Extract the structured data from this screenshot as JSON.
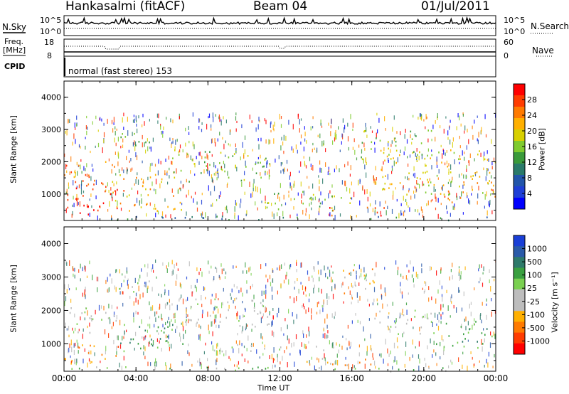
{
  "header": {
    "station": "Hankasalmi (fitACF)",
    "beam": "Beam 04",
    "date": "01/Jul/2011"
  },
  "strip_panels": {
    "nsky": {
      "left_label": "N.Sky",
      "left_ticks": [
        "10^5",
        "10^0"
      ],
      "right_ticks": [
        "10^5",
        "10^0"
      ],
      "right_label": "N.Search",
      "right_line_style": "dotted"
    },
    "freq": {
      "left_label_1": "Freq.",
      "left_label_2": "[MHz]",
      "left_ticks": [
        "18",
        "8"
      ],
      "right_ticks": [
        "60",
        "0"
      ],
      "right_label": "Nave",
      "right_line_style": "dotted"
    },
    "cpid": {
      "label": "CPID",
      "value": "normal (fast stereo) 153"
    }
  },
  "chart_data": [
    {
      "type": "heatmap",
      "title": "",
      "quantity": "Power",
      "xlabel": "",
      "ylabel": "Slant Range [km]",
      "x_range": [
        "00:00",
        "24:00"
      ],
      "y_range_km": [
        180,
        4500
      ],
      "y_ticks": [
        "1000",
        "2000",
        "3000",
        "4000"
      ],
      "x_ticks": [
        "00:00",
        "04:00",
        "08:00",
        "12:00",
        "16:00",
        "20:00",
        "00:00"
      ],
      "colorbar": {
        "label": "Power [dB]",
        "ticks": [
          "28",
          "24",
          "20",
          "16",
          "12",
          "8",
          "4"
        ],
        "colors": [
          "#ff0000",
          "#ff3c00",
          "#ff7a00",
          "#ffb000",
          "#d8d000",
          "#7fcb2e",
          "#3a9a3a",
          "#2a7a6a",
          "#2255aa",
          "#1f3fd6",
          "#0000ff"
        ]
      },
      "regions": [
        {
          "t0": 0.0,
          "t1": 3.3,
          "r0": 350,
          "r1": 1300,
          "band": 0
        },
        {
          "t0": 0.0,
          "t1": 2.8,
          "r0": 1300,
          "r1": 2100,
          "band": 2
        },
        {
          "t0": 2.5,
          "t1": 6.5,
          "r0": 500,
          "r1": 1700,
          "band": 3
        },
        {
          "t0": 6.0,
          "t1": 11.5,
          "r0": 1400,
          "r1": 2400,
          "band": 5
        },
        {
          "t0": 2.8,
          "t1": 5.2,
          "r0": 2500,
          "r1": 2900,
          "band": 6
        },
        {
          "t0": 11.0,
          "t1": 16.0,
          "r0": 500,
          "r1": 1100,
          "band": 5
        },
        {
          "t0": 14.5,
          "t1": 17.8,
          "r0": 350,
          "r1": 650,
          "band": 1
        },
        {
          "t0": 16.5,
          "t1": 20.5,
          "r0": 2100,
          "r1": 3000,
          "band": 5
        },
        {
          "t0": 17.5,
          "t1": 24.0,
          "r0": 1000,
          "r1": 2400,
          "band": 4
        },
        {
          "t0": 21.0,
          "t1": 24.0,
          "r0": 750,
          "r1": 1400,
          "band": 2
        },
        {
          "t0": 0.0,
          "t1": 24.0,
          "r0": 200,
          "r1": 330,
          "band": 7
        }
      ]
    },
    {
      "type": "heatmap",
      "title": "",
      "quantity": "Velocity",
      "xlabel": "Time UT",
      "ylabel": "Slant Range [km]",
      "x_range": [
        "00:00",
        "24:00"
      ],
      "y_range_km": [
        180,
        4500
      ],
      "y_ticks": [
        "1000",
        "2000",
        "3000",
        "4000"
      ],
      "x_ticks": [
        "00:00",
        "04:00",
        "08:00",
        "12:00",
        "16:00",
        "20:00",
        "00:00"
      ],
      "colorbar": {
        "label": "Velocity [m s⁻¹]",
        "ticks": [
          "1000",
          "500",
          "100",
          "25",
          "-25",
          "-100",
          "-500",
          "-1000"
        ],
        "colors": [
          "#1a3fd6",
          "#2a5aa8",
          "#2e7a6a",
          "#3aa040",
          "#7ad050",
          "#bdbdbd",
          "#bdbdbd",
          "#ffb000",
          "#ff7a00",
          "#ff3c00",
          "#ff0000"
        ]
      },
      "regions": [
        {
          "t0": 0.0,
          "t1": 3.0,
          "r0": 400,
          "r1": 1000,
          "band": 8
        },
        {
          "t0": 0.0,
          "t1": 3.0,
          "r0": 1300,
          "r1": 2100,
          "band": 5
        },
        {
          "t0": 3.0,
          "t1": 7.0,
          "r0": 800,
          "r1": 1600,
          "band": 3
        },
        {
          "t0": 6.0,
          "t1": 11.5,
          "r0": 1500,
          "r1": 2400,
          "band": 5
        },
        {
          "t0": 3.0,
          "t1": 5.0,
          "r0": 2500,
          "r1": 2900,
          "band": 5
        },
        {
          "t0": 11.5,
          "t1": 17.5,
          "r0": 380,
          "r1": 600,
          "band": 7
        },
        {
          "t0": 15.5,
          "t1": 17.5,
          "r0": 2500,
          "r1": 3300,
          "band": 7
        },
        {
          "t0": 17.0,
          "t1": 20.5,
          "r0": 1300,
          "r1": 2100,
          "band": 5
        },
        {
          "t0": 20.5,
          "t1": 24.0,
          "r0": 900,
          "r1": 1700,
          "band": 3
        },
        {
          "t0": 8.0,
          "t1": 16.0,
          "r0": 800,
          "r1": 1000,
          "band": 5
        },
        {
          "t0": 0.0,
          "t1": 24.0,
          "r0": 200,
          "r1": 330,
          "band": 4
        }
      ]
    }
  ]
}
